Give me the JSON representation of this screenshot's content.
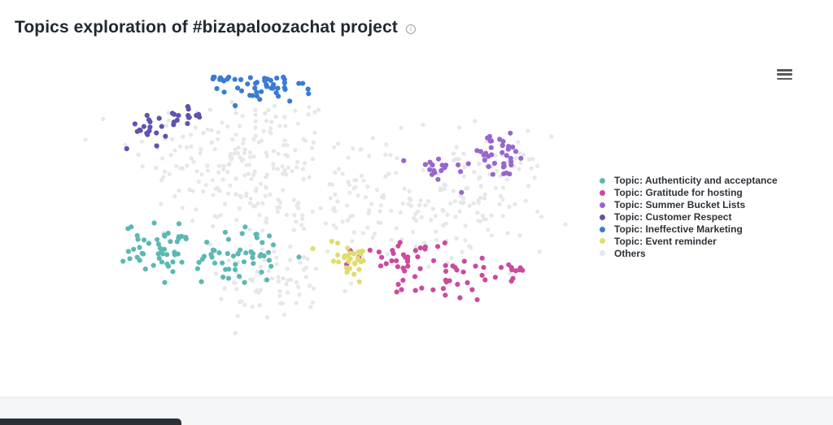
{
  "header": {
    "title": "Topics exploration of #bizapaloozachat project",
    "info_icon": "info-icon"
  },
  "toolbar": {
    "menu_icon": "hamburger-menu-icon"
  },
  "chart_data": {
    "type": "scatter",
    "title": "Topics exploration of #bizapaloozachat project",
    "xlabel": "",
    "ylabel": "",
    "xlim": [
      0,
      100
    ],
    "ylim": [
      0,
      100
    ],
    "grid": false,
    "legend_position": "right",
    "series": [
      {
        "name": "Topic: Authenticity and acceptance",
        "color": "#5cb8b2",
        "clusters": [
          {
            "center": [
              16.5,
              33.0
            ],
            "spread": [
              4.2,
              4.8
            ],
            "count": 55
          },
          {
            "center": [
              32.5,
              30.5
            ],
            "spread": [
              4.0,
              5.5
            ],
            "count": 45
          }
        ]
      },
      {
        "name": "Topic: Gratitude for hosting",
        "color": "#cc4a9e",
        "clusters": [
          {
            "center": [
              67.5,
              30.0
            ],
            "spread": [
              5.2,
              3.6
            ],
            "count": 35
          },
          {
            "center": [
              76.0,
              20.0
            ],
            "spread": [
              5.2,
              3.6
            ],
            "count": 30
          },
          {
            "center": [
              89.0,
              24.0
            ],
            "spread": [
              1.6,
              2.2
            ],
            "count": 8
          }
        ]
      },
      {
        "name": "Topic: Summer Bucket Lists",
        "color": "#9767cc",
        "clusters": [
          {
            "center": [
              74.0,
              64.0
            ],
            "spread": [
              3.2,
              3.0
            ],
            "count": 18
          },
          {
            "center": [
              86.0,
              69.0
            ],
            "spread": [
              3.4,
              4.2
            ],
            "count": 35
          }
        ]
      },
      {
        "name": "Topic: Customer Respect",
        "color": "#5d53b0",
        "clusters": [
          {
            "center": [
              12.5,
              80.5
            ],
            "spread": [
              2.2,
              4.0
            ],
            "count": 16
          },
          {
            "center": [
              20.5,
              85.0
            ],
            "spread": [
              2.2,
              2.2
            ],
            "count": 18
          }
        ]
      },
      {
        "name": "Topic: Ineffective Marketing",
        "color": "#3a7bd5",
        "clusters": [
          {
            "center": [
              28.5,
              99.0
            ],
            "spread": [
              1.6,
              1.4
            ],
            "count": 12
          },
          {
            "center": [
              37.5,
              95.5
            ],
            "spread": [
              4.0,
              3.0
            ],
            "count": 40
          }
        ]
      },
      {
        "name": "Topic: Event reminder",
        "color": "#dedd6e",
        "clusters": [
          {
            "center": [
              54.5,
              29.5
            ],
            "spread": [
              2.8,
              3.6
            ],
            "count": 30
          }
        ]
      },
      {
        "name": "Others",
        "color": "#e6e7e9",
        "clusters": [
          {
            "center": [
              32.0,
              70.0
            ],
            "spread": [
              11.0,
              12.0
            ],
            "count": 170
          },
          {
            "center": [
              56.0,
              50.0
            ],
            "spread": [
              16.0,
              13.0
            ],
            "count": 190
          },
          {
            "center": [
              82.0,
              55.0
            ],
            "spread": [
              7.0,
              11.0
            ],
            "count": 90
          },
          {
            "center": [
              40.0,
              18.0
            ],
            "spread": [
              8.0,
              7.0
            ],
            "count": 60
          }
        ]
      }
    ]
  }
}
